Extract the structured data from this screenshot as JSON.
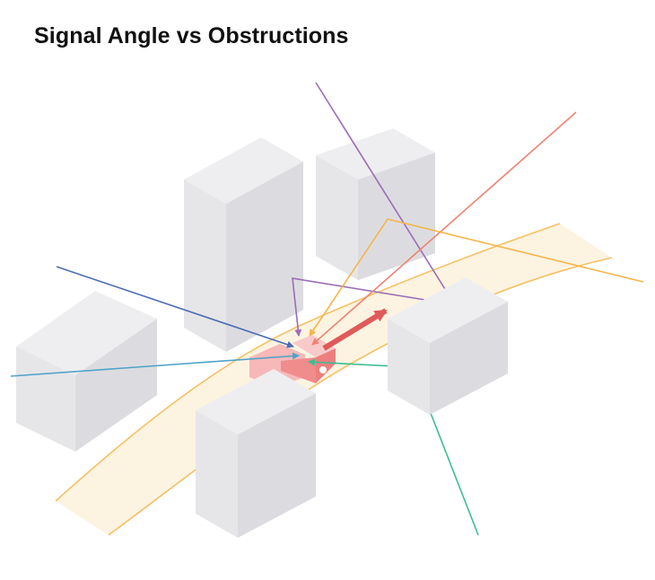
{
  "title": "Signal Angle vs Obstructions",
  "colors": {
    "road_fill": "#fdf3e1",
    "road_edge": "#f5c163",
    "building_top": "#eeeef0",
    "building_left": "#e6e6e9",
    "building_right": "#dcdce0",
    "vehicle": "#f08c8c",
    "vehicle_light": "#f6b8b8",
    "heading_arrow": "#e05a5a",
    "signals": {
      "purple": "#9b6db8",
      "red": "#ef8270",
      "orange": "#f5b54a",
      "blue_dark": "#4a6cb6",
      "blue_light": "#4fa3c9",
      "green": "#3dbd93"
    }
  },
  "buildings": [
    {
      "name": "building-back-left"
    },
    {
      "name": "building-back-right"
    },
    {
      "name": "building-left"
    },
    {
      "name": "building-right"
    },
    {
      "name": "building-front"
    }
  ],
  "signals": [
    {
      "name": "signal-purple-direct",
      "color_key": "purple"
    },
    {
      "name": "signal-purple-reflected",
      "color_key": "purple"
    },
    {
      "name": "signal-red",
      "color_key": "red"
    },
    {
      "name": "signal-orange-reflected",
      "color_key": "orange"
    },
    {
      "name": "signal-blue-dark",
      "color_key": "blue_dark"
    },
    {
      "name": "signal-blue-light",
      "color_key": "blue_light"
    },
    {
      "name": "signal-green-reflected",
      "color_key": "green"
    }
  ]
}
